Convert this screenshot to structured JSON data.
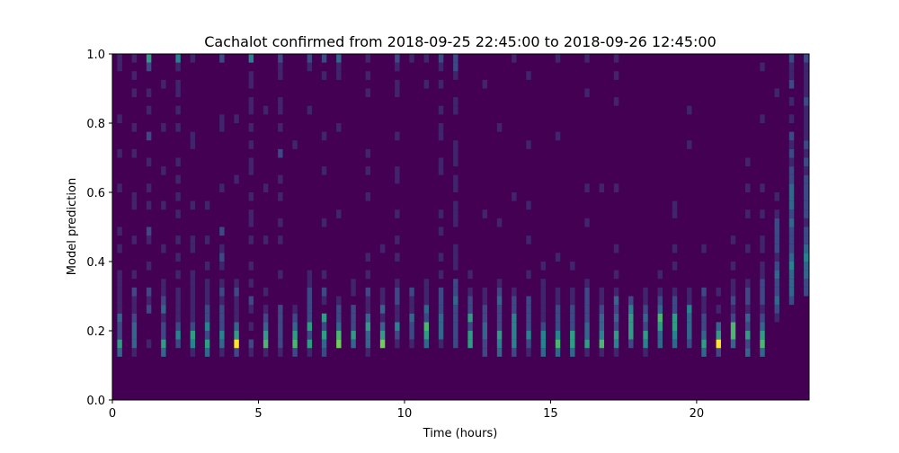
{
  "chart_data": {
    "type": "heatmap",
    "title": "Cachalot confirmed from 2018-09-25 22:45:00 to 2018-09-26 12:45:00",
    "xlabel": "Time (hours)",
    "ylabel": "Model prediction",
    "xlim": [
      0,
      23.85
    ],
    "ylim": [
      0,
      1
    ],
    "xticks": [
      "0",
      "5",
      "10",
      "15",
      "20"
    ],
    "yticks": [
      "0.0",
      "0.2",
      "0.4",
      "0.6",
      "0.8",
      "1.0"
    ],
    "colormap": "viridis",
    "background_color": "#440154",
    "y_bin_size": 0.025,
    "x_bin_width_hours": 0.1667,
    "value_scale_max": 9,
    "columns": [
      {
        "t": 0.25,
        "v": "0000035223111110010100001000100010000011"
      },
      {
        "t": 0.75,
        "v": "0000013332112010001000110000100100010101"
      },
      {
        "t": 1.25,
        "v": "0000001000212001001200101001002001010025"
      },
      {
        "t": 1.75,
        "v": "0000035221321100010000100010000100001000"
      },
      {
        "t": 2.25,
        "v": "0000002421111010101001010101000101011014"
      },
      {
        "t": 2.75,
        "v": "0000014521111110011000100000011000000001"
      },
      {
        "t": 3.25,
        "v": "0000035242211101001000100000000000000000"
      },
      {
        "t": 3.75,
        "v": "0000013422212101210200001000000110000002"
      },
      {
        "t": 4.25,
        "v": "0000029531112100000000000100000010000000"
      },
      {
        "t": 4.75,
        "v": "0000012010120101001011010011010101101104"
      },
      {
        "t": 5.25,
        "v": "0000016532101000001000001000000001000000"
      },
      {
        "t": 5.75,
        "v": "0000012222200010001010010100200101100112"
      },
      {
        "t": 6.25,
        "v": "0000026532100000000000000000010000000000"
      },
      {
        "t": 6.75,
        "v": "0000015252222110000000000000000001000012"
      },
      {
        "t": 7.25,
        "v": "0000023525012010000010000010001000000102"
      },
      {
        "t": 7.75,
        "v": "0000007632210000000001000000000100000113"
      },
      {
        "t": 8.25,
        "v": "0000003522201100000000000000000000000000"
      },
      {
        "t": 8.75,
        "v": "0000013353112010100000010010100000010101"
      },
      {
        "t": 9.25,
        "v": "0000007531311000010000000000000000000000"
      },
      {
        "t": 9.75,
        "v": "0000001241122100101001000110001000011012"
      },
      {
        "t": 10.25,
        "v": "0000001223112000000000000000000000000001"
      },
      {
        "t": 10.75,
        "v": "0000003562311100000000000000000000001001"
      },
      {
        "t": 11.25,
        "v": "0000001333222010100101000011001101001012"
      },
      {
        "t": 11.75,
        "v": "0000002222232201110011101101110001100122"
      },
      {
        "t": 12.25,
        "v": "0000005525221010000000000000000000000000"
      },
      {
        "t": 12.75,
        "v": "0000022332211000000001000000000000001000"
      },
      {
        "t": 13.25,
        "v": "0000034522232100000010000000000100000000"
      },
      {
        "t": 13.75,
        "v": "0000024444221000000000010000000000000001"
      },
      {
        "t": 14.25,
        "v": "0000012422220010001000100000010000000100"
      },
      {
        "t": 14.75,
        "v": "0000034421111101000000000000000000000000"
      },
      {
        "t": 15.25,
        "v": "0000036422211000100000000000001000000001"
      },
      {
        "t": 15.75,
        "v": "0000035522211001000000000000000000000000"
      },
      {
        "t": 16.25,
        "v": "0000015332222100000010001000000000010001"
      },
      {
        "t": 16.75,
        "v": "0000016433211000000000001000000000000000"
      },
      {
        "t": 17.25,
        "v": "0000014523231010010000001000000000100101"
      },
      {
        "t": 17.75,
        "v": "0000002555420000000000000000000000000000"
      },
      {
        "t": 18.25,
        "v": "0000014523211000000000000000000000000000"
      },
      {
        "t": 18.75,
        "v": "0000003356321010000000000000000000000000"
      },
      {
        "t": 19.25,
        "v": "0000003455221001010001100000000000000000"
      },
      {
        "t": 19.75,
        "v": "0000002333411000000000000000010001000000"
      },
      {
        "t": 20.25,
        "v": "0000035322112000010000000000000000000000"
      },
      {
        "t": 20.75,
        "v": "0000029530101000000000000000000000000000"
      },
      {
        "t": 21.25,
        "v": "0000003662121101001000000000000000000000"
      },
      {
        "t": 21.75,
        "v": "0000032523122100010001001001000000000000"
      },
      {
        "t": 22.25,
        "v": "0000036532122211011001001000000010000010"
      },
      {
        "t": 22.75,
        "v": "0000000001232232122221010000000000010000"
      },
      {
        "t": 23.25,
        "v": "0000000000023334322232333221212010102112"
      },
      {
        "t": 23.75,
        "v": "0000000000002233432212222212121111211112"
      }
    ]
  }
}
